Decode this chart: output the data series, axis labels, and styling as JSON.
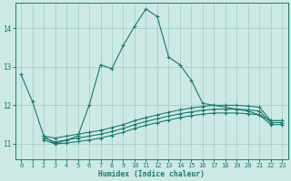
{
  "xlabel": "Humidex (Indice chaleur)",
  "background_color": "#cce9e5",
  "grid_color": "#a0ccc8",
  "line_color": "#1a7a6e",
  "xlim": [
    -0.5,
    23.5
  ],
  "ylim": [
    10.6,
    14.65
  ],
  "yticks": [
    11,
    12,
    13,
    14
  ],
  "xticks": [
    0,
    1,
    2,
    3,
    4,
    5,
    6,
    7,
    8,
    9,
    10,
    11,
    12,
    13,
    14,
    15,
    16,
    17,
    18,
    19,
    20,
    21,
    22,
    23
  ],
  "lines": [
    {
      "x": [
        0,
        1,
        2,
        3,
        4,
        5,
        6,
        7,
        8,
        9,
        10,
        11,
        12,
        13,
        14,
        15,
        16,
        17,
        18,
        19,
        20,
        21,
        22,
        23
      ],
      "y": [
        12.8,
        12.1,
        11.2,
        11.0,
        11.1,
        11.2,
        12.0,
        13.05,
        12.95,
        13.55,
        14.05,
        14.5,
        14.3,
        13.25,
        13.05,
        12.65,
        12.05,
        12.0,
        11.95,
        11.9,
        11.85,
        11.75,
        11.6,
        11.6
      ]
    },
    {
      "x": [
        2,
        3,
        4,
        5,
        6,
        7,
        8,
        9,
        10,
        11,
        12,
        13,
        14,
        15,
        16,
        17,
        18,
        19,
        20,
        21,
        22,
        23
      ],
      "y": [
        11.2,
        11.15,
        11.2,
        11.25,
        11.3,
        11.35,
        11.42,
        11.5,
        11.6,
        11.68,
        11.75,
        11.82,
        11.88,
        11.93,
        11.97,
        12.0,
        12.0,
        12.0,
        11.98,
        11.95,
        11.6,
        11.6
      ]
    },
    {
      "x": [
        2,
        3,
        4,
        5,
        6,
        7,
        8,
        9,
        10,
        11,
        12,
        13,
        14,
        15,
        16,
        17,
        18,
        19,
        20,
        21,
        22,
        23
      ],
      "y": [
        11.15,
        11.05,
        11.1,
        11.15,
        11.2,
        11.25,
        11.32,
        11.4,
        11.5,
        11.58,
        11.65,
        11.72,
        11.78,
        11.83,
        11.87,
        11.9,
        11.9,
        11.9,
        11.88,
        11.85,
        11.55,
        11.55
      ]
    },
    {
      "x": [
        2,
        3,
        4,
        5,
        6,
        7,
        8,
        9,
        10,
        11,
        12,
        13,
        14,
        15,
        16,
        17,
        18,
        19,
        20,
        21,
        22,
        23
      ],
      "y": [
        11.1,
        11.0,
        11.02,
        11.06,
        11.1,
        11.15,
        11.22,
        11.3,
        11.4,
        11.48,
        11.55,
        11.62,
        11.68,
        11.73,
        11.77,
        11.8,
        11.8,
        11.8,
        11.78,
        11.75,
        11.5,
        11.5
      ]
    }
  ]
}
